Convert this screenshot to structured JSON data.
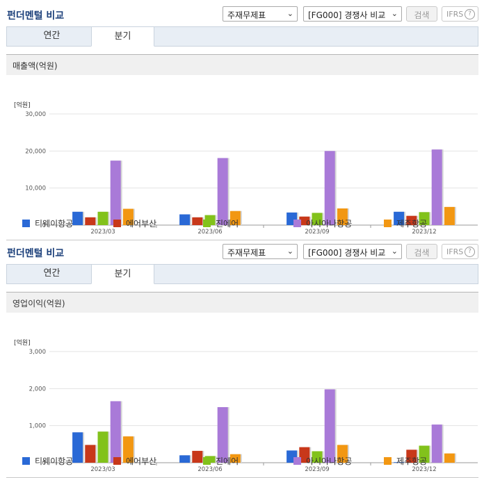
{
  "sections": [
    {
      "title": "펀더멘털 비교",
      "select1": "주재무제표",
      "select2": "[FG000] 경쟁사 비교",
      "search_label": "검색",
      "ifrs_label": "IFRS",
      "help_glyph": "?",
      "tabs": [
        "연간",
        "분기"
      ],
      "active_tab": "분기",
      "metric_label": "매출액(억원)",
      "unit_label": "[억원]"
    },
    {
      "title": "펀더멘털 비교",
      "select1": "주재무제표",
      "select2": "[FG000] 경쟁사 비교",
      "search_label": "검색",
      "ifrs_label": "IFRS",
      "help_glyph": "?",
      "tabs": [
        "연간",
        "분기"
      ],
      "active_tab": "분기",
      "metric_label": "영업이익(억원)",
      "unit_label": "[억원]"
    }
  ],
  "chart_data": [
    {
      "type": "bar",
      "title": "매출액(억원)",
      "ylabel": "[억원]",
      "categories": [
        "2023/03",
        "2023/06",
        "2023/09",
        "2023/12"
      ],
      "ylim": [
        0,
        30000
      ],
      "yticks": [
        "0",
        "10,000",
        "20,000",
        "30,000"
      ],
      "ytick_values": [
        0,
        10000,
        20000,
        30000
      ],
      "grid": true,
      "legend": "bottom",
      "series": [
        {
          "name": "티웨이항공",
          "color": "#2a69d6",
          "values": [
            3600,
            2900,
            3400,
            3600
          ]
        },
        {
          "name": "에어부산",
          "color": "#c8381a",
          "values": [
            2100,
            2100,
            2300,
            2500
          ]
        },
        {
          "name": "진에어",
          "color": "#82c21b",
          "values": [
            3600,
            2700,
            3300,
            3500
          ]
        },
        {
          "name": "아시아나항공",
          "color": "#a97ad8",
          "values": [
            17400,
            18100,
            20000,
            20400
          ]
        },
        {
          "name": "제주항공",
          "color": "#f29712",
          "values": [
            4400,
            3800,
            4500,
            4900
          ]
        }
      ]
    },
    {
      "type": "bar",
      "title": "영업이익(억원)",
      "ylabel": "[억원]",
      "categories": [
        "2023/03",
        "2023/06",
        "2023/09",
        "2023/12"
      ],
      "ylim": [
        0,
        3000
      ],
      "yticks": [
        "0",
        "1,000",
        "2,000",
        "3,000"
      ],
      "ytick_values": [
        0,
        1000,
        2000,
        3000
      ],
      "grid": true,
      "legend": "bottom",
      "series": [
        {
          "name": "티웨이항공",
          "color": "#2a69d6",
          "values": [
            820,
            200,
            330,
            15
          ]
        },
        {
          "name": "에어부산",
          "color": "#c8381a",
          "values": [
            480,
            320,
            420,
            350
          ]
        },
        {
          "name": "진에어",
          "color": "#82c21b",
          "values": [
            840,
            180,
            310,
            460
          ]
        },
        {
          "name": "아시아나항공",
          "color": "#a97ad8",
          "values": [
            1660,
            1500,
            1980,
            1030
          ]
        },
        {
          "name": "제주항공",
          "color": "#f29712",
          "values": [
            710,
            230,
            480,
            250
          ]
        }
      ]
    }
  ]
}
